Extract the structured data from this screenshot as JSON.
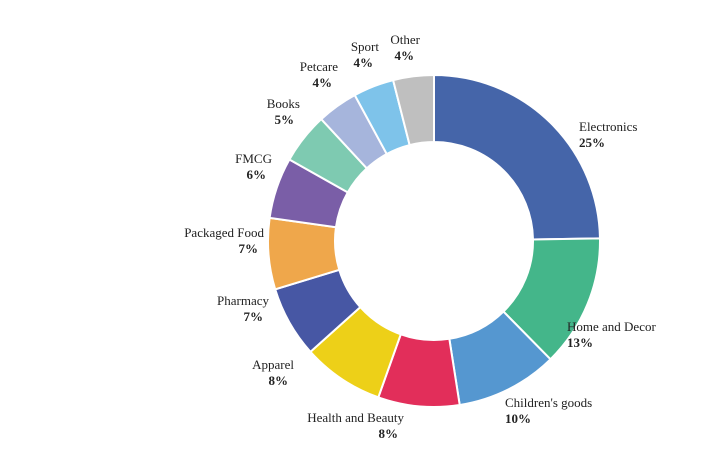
{
  "chart_data": {
    "type": "pie",
    "title": "",
    "donut": true,
    "legend": "none",
    "slices": [
      {
        "label": "Electronics",
        "value": 25,
        "display": "25%",
        "color": "#4565A9"
      },
      {
        "label": "Home and Decor",
        "value": 13,
        "display": "13%",
        "color": "#44B68A"
      },
      {
        "label": "Children's goods",
        "value": 10,
        "display": "10%",
        "color": "#5597D0"
      },
      {
        "label": "Health and Beauty",
        "value": 8,
        "display": "8%",
        "color": "#E22E5A"
      },
      {
        "label": "Apparel",
        "value": 8,
        "display": "8%",
        "color": "#EDD018"
      },
      {
        "label": "Pharmacy",
        "value": 7,
        "display": "7%",
        "color": "#4757A4"
      },
      {
        "label": "Packaged Food",
        "value": 7,
        "display": "7%",
        "color": "#EFA74B"
      },
      {
        "label": "FMCG",
        "value": 6,
        "display": "6%",
        "color": "#7A5EA7"
      },
      {
        "label": "Books",
        "value": 5,
        "display": "5%",
        "color": "#7ECAB1"
      },
      {
        "label": "Petcare",
        "value": 4,
        "display": "4%",
        "color": "#A6B5DC"
      },
      {
        "label": "Sport",
        "value": 4,
        "display": "4%",
        "color": "#7EC3EA"
      },
      {
        "label": "Other",
        "value": 4,
        "display": "4%",
        "color": "#BFBFBF"
      }
    ]
  }
}
